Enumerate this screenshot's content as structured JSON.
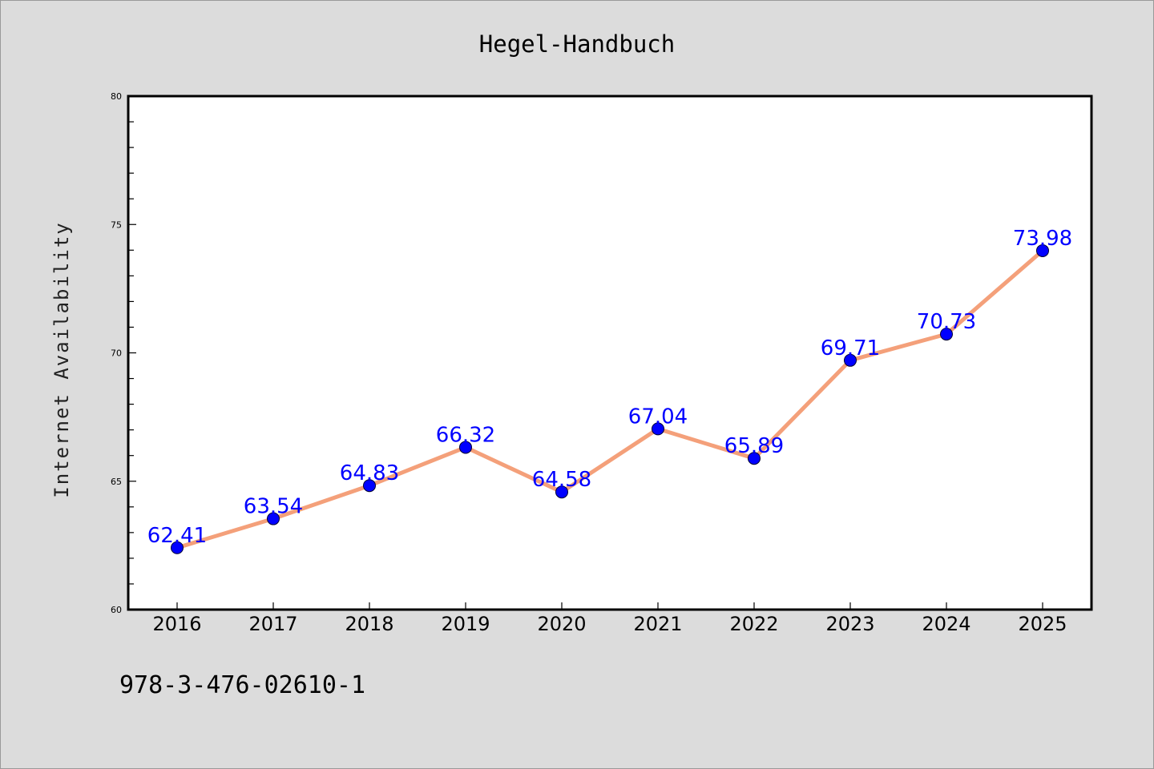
{
  "chart_data": {
    "type": "line",
    "title": "Hegel-Handbuch",
    "ylabel": "Internet Availability",
    "xlabel": "",
    "categories": [
      "2016",
      "2017",
      "2018",
      "2019",
      "2020",
      "2021",
      "2022",
      "2023",
      "2024",
      "2025"
    ],
    "values": [
      62.41,
      63.54,
      64.83,
      66.32,
      64.58,
      67.04,
      65.89,
      69.71,
      70.73,
      73.98
    ],
    "data_labels": [
      "62.41",
      "63.54",
      "64.83",
      "66.32",
      "64.58",
      "67.04",
      "65.89",
      "69.71",
      "70.73",
      "73.98"
    ],
    "ylim": [
      60,
      80
    ],
    "yticks": [
      "60",
      "65",
      "70",
      "75",
      "80"
    ],
    "grid": false,
    "colors": {
      "line": "#f4a07a",
      "marker": "#0000ff",
      "label": "#0000ff",
      "background": "#dcdcdc",
      "plot_bg": "#ffffff"
    }
  },
  "footer": {
    "isbn": "978-3-476-02610-1"
  }
}
